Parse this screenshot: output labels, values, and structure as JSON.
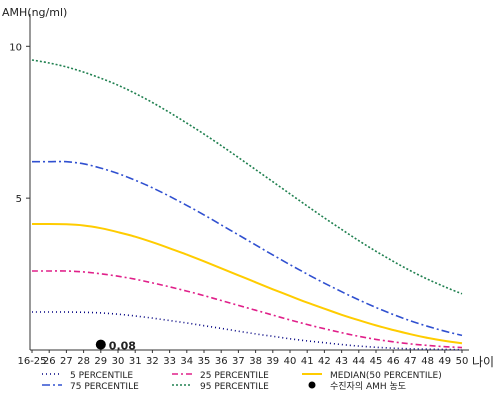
{
  "chart_data": {
    "type": "line",
    "ylabel": "AMH(ng/ml)",
    "xlabel": "나이",
    "ylim": [
      0,
      10.8
    ],
    "yticks": [
      10,
      5
    ],
    "x_labels": [
      "16-25",
      "26",
      "27",
      "28",
      "29",
      "30",
      "31",
      "32",
      "33",
      "34",
      "35",
      "36",
      "37",
      "38",
      "39",
      "40",
      "41",
      "42",
      "43",
      "44",
      "45",
      "46",
      "47",
      "48",
      "49",
      "50"
    ],
    "series": [
      {
        "name": "5 PERCENTILE",
        "color": "#000080",
        "dash": "1,3",
        "values": [
          1.25,
          1.25,
          1.25,
          1.24,
          1.22,
          1.18,
          1.12,
          1.05,
          0.97,
          0.89,
          0.8,
          0.71,
          0.62,
          0.53,
          0.45,
          0.37,
          0.3,
          0.24,
          0.18,
          0.13,
          0.09,
          0.06,
          0.04,
          0.03,
          0.02,
          0.01
        ]
      },
      {
        "name": "25 PERCENTILE",
        "color": "#e0208a",
        "dash": "6,3,2,3",
        "values": [
          2.6,
          2.6,
          2.6,
          2.57,
          2.51,
          2.43,
          2.33,
          2.21,
          2.08,
          1.94,
          1.79,
          1.63,
          1.47,
          1.31,
          1.15,
          0.99,
          0.84,
          0.7,
          0.57,
          0.45,
          0.35,
          0.27,
          0.2,
          0.15,
          0.11,
          0.08
        ]
      },
      {
        "name": "MEDIAN(50 PERCENTILE)",
        "color": "#ffcc00",
        "dash": "",
        "values": [
          4.15,
          4.15,
          4.14,
          4.1,
          4.01,
          3.88,
          3.73,
          3.55,
          3.35,
          3.14,
          2.92,
          2.69,
          2.46,
          2.23,
          2.0,
          1.78,
          1.56,
          1.36,
          1.16,
          0.98,
          0.81,
          0.66,
          0.52,
          0.4,
          0.3,
          0.22
        ]
      },
      {
        "name": "75 PERCENTILE",
        "color": "#3050d0",
        "dash": "8,3,2,3",
        "values": [
          6.2,
          6.2,
          6.2,
          6.13,
          5.99,
          5.81,
          5.59,
          5.34,
          5.06,
          4.76,
          4.45,
          4.12,
          3.79,
          3.46,
          3.13,
          2.81,
          2.5,
          2.2,
          1.92,
          1.65,
          1.4,
          1.17,
          0.96,
          0.78,
          0.62,
          0.48
        ]
      },
      {
        "name": "95 PERCENTILE",
        "color": "#208050",
        "dash": "2,2",
        "values": [
          9.55,
          9.45,
          9.32,
          9.15,
          8.95,
          8.72,
          8.45,
          8.15,
          7.82,
          7.47,
          7.11,
          6.73,
          6.34,
          5.94,
          5.54,
          5.14,
          4.74,
          4.35,
          3.97,
          3.6,
          3.25,
          2.92,
          2.61,
          2.33,
          2.08,
          1.85
        ]
      }
    ],
    "marker": {
      "label": "수진자의 AMH 농도",
      "x": "29",
      "y": 0.08,
      "value_label": "0.08"
    },
    "legend": {
      "placement": "bottom",
      "order": [
        "5 PERCENTILE",
        "25 PERCENTILE",
        "MEDIAN(50 PERCENTILE)",
        "75 PERCENTILE",
        "95 PERCENTILE",
        "수진자의 AMH 농도"
      ]
    }
  }
}
